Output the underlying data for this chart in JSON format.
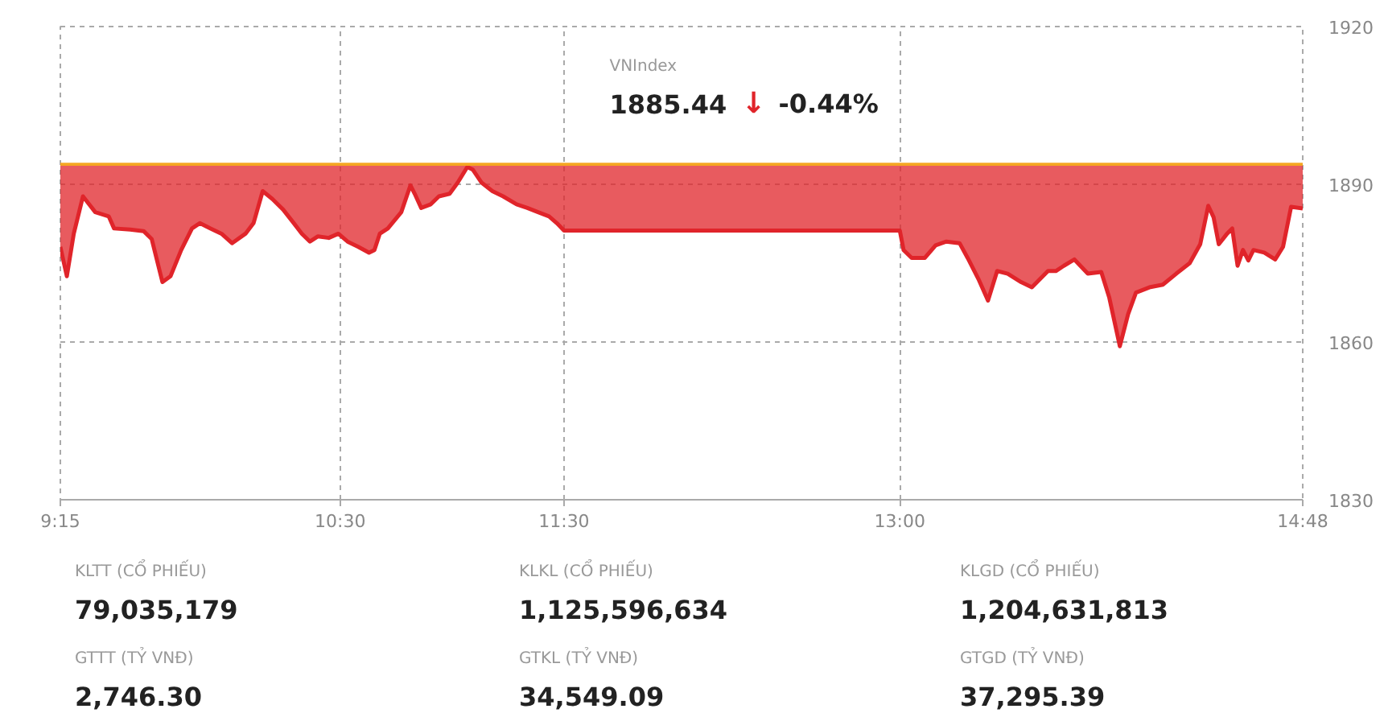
{
  "chart_data": {
    "type": "line",
    "x": [
      9.25,
      9.279,
      9.31,
      9.351,
      9.406,
      9.466,
      9.49,
      9.562,
      9.622,
      9.658,
      9.706,
      9.742,
      9.79,
      9.838,
      9.873,
      9.921,
      9.97,
      10.017,
      10.077,
      10.113,
      10.154,
      10.197,
      10.245,
      10.293,
      10.329,
      10.365,
      10.401,
      10.449,
      10.492,
      10.533,
      10.581,
      10.629,
      10.653,
      10.677,
      10.713,
      10.773,
      10.814,
      10.833,
      10.862,
      10.905,
      10.941,
      10.989,
      11.025,
      11.068,
      11.092,
      11.132,
      11.18,
      11.228,
      11.288,
      11.336,
      11.384,
      11.433,
      11.468,
      11.5,
      13.0,
      13.017,
      13.053,
      13.112,
      13.16,
      13.208,
      13.267,
      13.303,
      13.351,
      13.394,
      13.435,
      13.482,
      13.542,
      13.59,
      13.662,
      13.697,
      13.733,
      13.78,
      13.84,
      13.9,
      13.936,
      13.983,
      14.02,
      14.055,
      14.115,
      14.175,
      14.235,
      14.295,
      14.342,
      14.378,
      14.402,
      14.425,
      14.462,
      14.485,
      14.509,
      14.533,
      14.557,
      14.58,
      14.628,
      14.677,
      14.712,
      14.748,
      14.8
    ],
    "series": [
      {
        "color": "#e0242a",
        "values": [
          1878.1,
          1872.5,
          1880.6,
          1887.7,
          1884.7,
          1883.9,
          1881.6,
          1881.4,
          1881.1,
          1879.6,
          1871.4,
          1872.5,
          1877.5,
          1881.6,
          1882.6,
          1881.6,
          1880.6,
          1878.8,
          1880.6,
          1882.6,
          1888.7,
          1887.2,
          1885.2,
          1882.6,
          1880.6,
          1879.1,
          1880.1,
          1879.8,
          1880.6,
          1879.1,
          1878.1,
          1877.0,
          1877.5,
          1880.6,
          1881.6,
          1884.7,
          1889.8,
          1888.2,
          1885.5,
          1886.2,
          1887.7,
          1888.2,
          1890.3,
          1893.3,
          1892.8,
          1890.3,
          1888.7,
          1887.7,
          1886.2,
          1885.5,
          1884.7,
          1883.9,
          1882.6,
          1881.2,
          1881.2,
          1877.5,
          1876.0,
          1876.0,
          1878.4,
          1879.1,
          1878.8,
          1876.0,
          1872.0,
          1867.9,
          1873.5,
          1873.0,
          1871.4,
          1870.4,
          1873.5,
          1873.5,
          1874.5,
          1875.7,
          1873.0,
          1873.3,
          1868.4,
          1859.2,
          1865.3,
          1869.4,
          1870.4,
          1870.9,
          1873.0,
          1875.0,
          1878.6,
          1885.9,
          1883.7,
          1878.6,
          1880.6,
          1881.6,
          1874.5,
          1877.5,
          1875.5,
          1877.5,
          1877.0,
          1875.7,
          1878.1,
          1885.7,
          1885.4
        ],
        "lower": [
          1878.1,
          1872.5,
          1880.6,
          1887.7,
          1884.7,
          1883.9,
          1881.6,
          1881.4,
          1881.1,
          1879.6,
          1871.4,
          1872.5,
          1877.5,
          1881.6,
          1882.6,
          1881.6,
          1880.6,
          1878.8,
          1880.6,
          1882.6,
          1888.7,
          1887.2,
          1885.2,
          1882.6,
          1880.6,
          1879.1,
          1880.1,
          1879.8,
          1880.6,
          1879.1,
          1878.1,
          1877.0,
          1877.5,
          1880.6,
          1881.6,
          1884.7,
          1889.8,
          1888.2,
          1885.5,
          1886.2,
          1887.7,
          1888.2,
          1890.3,
          1893.3,
          1892.8,
          1890.3,
          1888.7,
          1887.7,
          1886.2,
          1885.5,
          1884.7,
          1883.9,
          1882.6,
          1881.2,
          1881.2,
          1877.5,
          1876.0,
          1876.0,
          1878.4,
          1879.1,
          1878.8,
          1876.0,
          1872.0,
          1867.9,
          1873.5,
          1873.0,
          1871.4,
          1870.4,
          1873.5,
          1873.5,
          1874.5,
          1875.7,
          1873.0,
          1873.3,
          1868.4,
          1859.2,
          1865.3,
          1869.4,
          1870.4,
          1870.9,
          1873.0,
          1875.0,
          1878.6,
          1885.9,
          1883.7,
          1878.6,
          1880.6,
          1881.6,
          1874.5,
          1877.5,
          1875.5,
          1877.5,
          1877.0,
          1875.7,
          1878.1,
          1885.7,
          1885.4
        ],
        "upper": [
          1893.8,
          1893.8,
          1893.8,
          1893.8,
          1893.8,
          1893.8,
          1893.8,
          1893.8,
          1893.8,
          1893.8,
          1893.8,
          1893.8,
          1893.8,
          1893.8,
          1893.8,
          1893.8,
          1893.8,
          1893.8,
          1893.8,
          1893.8,
          1893.8,
          1893.8,
          1893.8,
          1893.8,
          1893.8,
          1893.8,
          1893.8,
          1893.8,
          1893.8,
          1893.8,
          1893.8,
          1893.8,
          1893.8,
          1893.8,
          1893.8,
          1893.8,
          1893.8,
          1893.8,
          1893.8,
          1893.8,
          1893.8,
          1893.8,
          1893.8,
          1893.8,
          1893.8,
          1893.8,
          1893.8,
          1893.8,
          1893.8,
          1893.8,
          1893.8,
          1893.8,
          1893.8,
          1893.8,
          1893.8,
          1893.8,
          1893.8,
          1893.8,
          1893.8,
          1893.8,
          1893.8,
          1893.8,
          1893.8,
          1893.8,
          1893.8,
          1893.8,
          1893.8,
          1893.8,
          1893.8,
          1893.8,
          1893.8,
          1893.8,
          1893.8,
          1893.8,
          1893.8,
          1893.8,
          1893.8,
          1893.8,
          1893.8,
          1893.8,
          1893.8,
          1893.8,
          1893.8,
          1893.8,
          1893.8,
          1893.8,
          1893.8,
          1893.8,
          1893.8,
          1893.8,
          1893.8,
          1893.8,
          1893.8,
          1893.8,
          1893.8,
          1893.8,
          1893.8
        ]
      }
    ],
    "xlim": [
      9.25,
      14.8
    ],
    "xticks": [
      {
        "value": 9.25,
        "label": "9:15"
      },
      {
        "value": 10.5,
        "label": "10:30"
      },
      {
        "value": 11.5,
        "label": "11:30"
      },
      {
        "value": 13,
        "label": "13:00"
      },
      {
        "value": 14.8,
        "label": "14:48"
      }
    ],
    "ylim": [
      1830,
      1920
    ],
    "yticks": [
      1830,
      1860,
      1890,
      1920
    ],
    "grid": true,
    "ref_lines": [
      {
        "axis": "y",
        "value": 1893.8,
        "color": "#f5a623"
      }
    ],
    "annotations": [
      "VNIndex",
      "1885.44",
      "↓",
      "-0.44%",
      "KLTT (CỔ PHIẾU)",
      "79,035,179",
      "KLKL (CỔ PHIẾU)",
      "1,125,596,634",
      "KLGD (CỔ PHIẾU)",
      "1,204,631,813",
      "GTTT (TỶ VNĐ)",
      "2,746.30",
      "GTKL (TỶ VNĐ)",
      "34,549.09",
      "GTGD (TỶ VNĐ)",
      "37,295.39"
    ]
  }
}
